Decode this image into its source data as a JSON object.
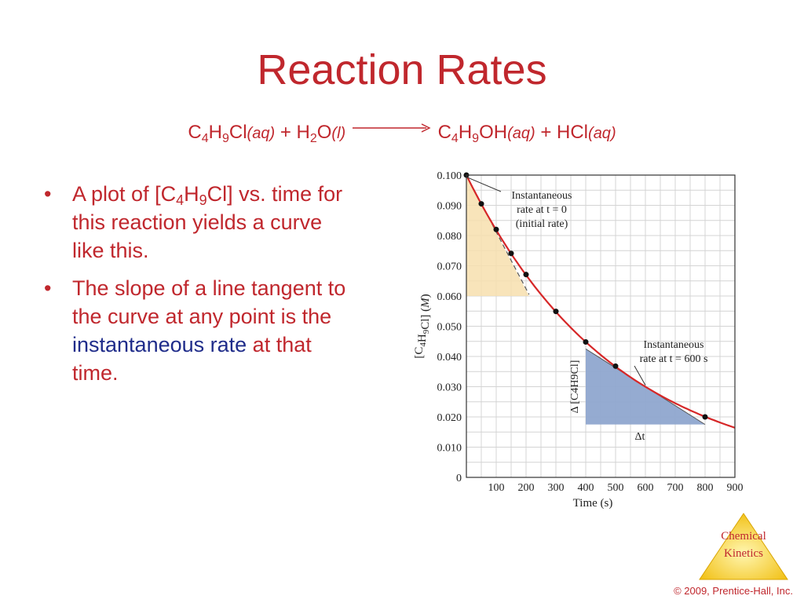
{
  "slide": {
    "title": "Reaction Rates",
    "equation": {
      "reactant1": [
        "C",
        "4",
        "H",
        "9",
        "Cl"
      ],
      "reactant1_state": "aq",
      "plus1": "+",
      "reactant2": [
        "H",
        "2",
        "O"
      ],
      "reactant2_state": "l",
      "product1": [
        "C",
        "4",
        "H",
        "9",
        "OH"
      ],
      "product1_state": "aq",
      "plus2": "+",
      "product2": "HCl",
      "product2_state": "aq"
    },
    "bullets": [
      {
        "marker": "•",
        "parts": [
          "A plot of [C",
          "4",
          "H",
          "9",
          "Cl] vs. time for this reaction yields a curve like this."
        ]
      },
      {
        "marker": "•",
        "parts": [
          "The slope of a line tangent to the curve at any point is the ",
          "instantaneous rate",
          " at that time."
        ]
      }
    ],
    "logo": {
      "line1": "Chemical",
      "line2": "Kinetics"
    },
    "copyright": "© 2009, Prentice-Hall, Inc."
  },
  "chart_data": {
    "type": "line",
    "xlabel": "Time (s)",
    "ylabel": "[C4H9Cl] (M)",
    "xlim": [
      0,
      900
    ],
    "ylim": [
      0,
      0.1
    ],
    "x_ticks": [
      "100",
      "200",
      "300",
      "400",
      "500",
      "600",
      "700",
      "800",
      "900"
    ],
    "y_ticks": [
      "0",
      "0.010",
      "0.020",
      "0.030",
      "0.040",
      "0.050",
      "0.060",
      "0.070",
      "0.080",
      "0.090",
      "0.100"
    ],
    "grid": true,
    "series": [
      {
        "color": "#d62728",
        "points": [
          [
            0,
            0.1
          ],
          [
            50,
            0.0905
          ],
          [
            100,
            0.082
          ],
          [
            150,
            0.0741
          ],
          [
            200,
            0.0671
          ],
          [
            300,
            0.0549
          ],
          [
            400,
            0.0448
          ],
          [
            500,
            0.0368
          ],
          [
            800,
            0.02
          ]
        ]
      }
    ],
    "curve_extends_to": 900,
    "initial_tangent": {
      "from": [
        0,
        0.1
      ],
      "to": [
        210,
        0.0605
      ],
      "fill_bottom": 0.06,
      "fill_color": "#f7dfae"
    },
    "tangent_at_600": {
      "from": [
        400,
        0.0425
      ],
      "to": [
        800,
        0.0175
      ],
      "fill_color": "#8fa6cf"
    },
    "annotations": [
      {
        "id": "a1",
        "lines": [
          "Instantaneous",
          "rate at t = 0",
          "(initial rate)"
        ]
      },
      {
        "id": "a2",
        "lines": [
          "Instantaneous",
          "rate at t = 600 s"
        ]
      },
      {
        "id": "delta_c",
        "text": "Δ [C4H9Cl]"
      },
      {
        "id": "delta_t",
        "text": "Δt"
      }
    ]
  }
}
